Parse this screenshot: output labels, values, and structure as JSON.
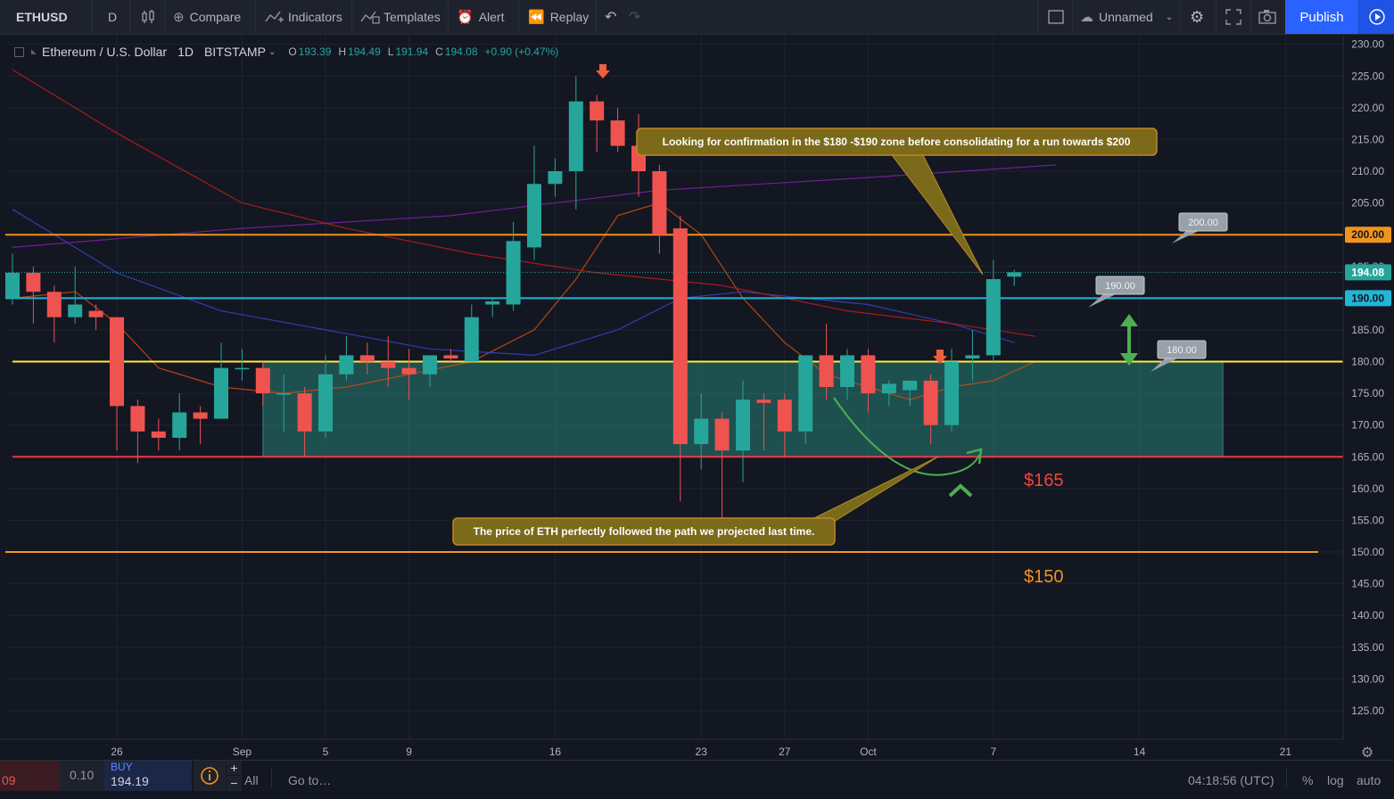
{
  "toolbar": {
    "symbol": "ETHUSD",
    "interval": "D",
    "compare_label": "Compare",
    "indicators_label": "Indicators",
    "templates_label": "Templates",
    "alert_label": "Alert",
    "replay_label": "Replay",
    "layout_name": "Unnamed",
    "publish_label": "Publish"
  },
  "legend": {
    "title": "Ethereum / U.S. Dollar",
    "interval": "1D",
    "exchange": "BITSTAMP",
    "open_label": "O",
    "open": "193.39",
    "high_label": "H",
    "high": "194.49",
    "low_label": "L",
    "low": "191.94",
    "close_label": "C",
    "close": "194.08",
    "change": "+0.90 (+0.47%)"
  },
  "colors": {
    "up": "#26a69a",
    "down": "#ef5350",
    "background": "#131722",
    "orange_line": "#f0941d",
    "cyan_line": "#22b5d6",
    "yellow_line": "#ffeb3b",
    "red_line": "#f23645"
  },
  "chart_data": {
    "type": "candlestick",
    "y_range": [
      120.5,
      231.5
    ],
    "y_ticks": [
      230,
      225,
      220,
      215,
      210,
      205,
      200,
      195,
      190,
      185,
      180,
      175,
      170,
      165,
      160,
      155,
      150,
      145,
      140,
      135,
      130,
      125
    ],
    "y_tick_labels": [
      "230.00",
      "225.00",
      "220.00",
      "215.00",
      "210.00",
      "205.00",
      "200.00",
      "195.00",
      "190.00",
      "185.00",
      "180.00",
      "175.00",
      "170.00",
      "165.00",
      "160.00",
      "155.00",
      "150.00",
      "145.00",
      "140.00",
      "135.00",
      "130.00",
      "125.00"
    ],
    "x_tick_labels": [
      "26",
      "Sep",
      "5",
      "9",
      "16",
      "23",
      "27",
      "Oct",
      "7",
      "14",
      "21"
    ],
    "x_tick_dates": [
      "2019-08-26",
      "2019-09-01",
      "2019-09-05",
      "2019-09-09",
      "2019-09-16",
      "2019-09-23",
      "2019-09-27",
      "2019-10-01",
      "2019-10-07",
      "2019-10-14",
      "2019-10-21"
    ],
    "candles": [
      {
        "date": "2019-08-21",
        "o": 190,
        "h": 197,
        "l": 189,
        "c": 194
      },
      {
        "date": "2019-08-22",
        "o": 194,
        "h": 195,
        "l": 186,
        "c": 191
      },
      {
        "date": "2019-08-23",
        "o": 191,
        "h": 192,
        "l": 183,
        "c": 187
      },
      {
        "date": "2019-08-24",
        "o": 187,
        "h": 195,
        "l": 186,
        "c": 189
      },
      {
        "date": "2019-08-25",
        "o": 188,
        "h": 189,
        "l": 185,
        "c": 187
      },
      {
        "date": "2019-08-26",
        "o": 187,
        "h": 187,
        "l": 166,
        "c": 173
      },
      {
        "date": "2019-08-27",
        "o": 173,
        "h": 174,
        "l": 164,
        "c": 169
      },
      {
        "date": "2019-08-28",
        "o": 169,
        "h": 171,
        "l": 166,
        "c": 168
      },
      {
        "date": "2019-08-29",
        "o": 168,
        "h": 175,
        "l": 166,
        "c": 172
      },
      {
        "date": "2019-08-30",
        "o": 172,
        "h": 173,
        "l": 167,
        "c": 171
      },
      {
        "date": "2019-08-31",
        "o": 171,
        "h": 183,
        "l": 171,
        "c": 179
      },
      {
        "date": "2019-09-01",
        "o": 179,
        "h": 182,
        "l": 177,
        "c": 179
      },
      {
        "date": "2019-09-02",
        "o": 179,
        "h": 180,
        "l": 173,
        "c": 175
      },
      {
        "date": "2019-09-03",
        "o": 175,
        "h": 178,
        "l": 169,
        "c": 175
      },
      {
        "date": "2019-09-04",
        "o": 175,
        "h": 176,
        "l": 165,
        "c": 169
      },
      {
        "date": "2019-09-05",
        "o": 169,
        "h": 181,
        "l": 168,
        "c": 178
      },
      {
        "date": "2019-09-06",
        "o": 178,
        "h": 184,
        "l": 177,
        "c": 181
      },
      {
        "date": "2019-09-07",
        "o": 181,
        "h": 183,
        "l": 178,
        "c": 180
      },
      {
        "date": "2019-09-08",
        "o": 180,
        "h": 184,
        "l": 176,
        "c": 179
      },
      {
        "date": "2019-09-09",
        "o": 179,
        "h": 182,
        "l": 174,
        "c": 178
      },
      {
        "date": "2019-09-10",
        "o": 178,
        "h": 181,
        "l": 176,
        "c": 181
      },
      {
        "date": "2019-09-11",
        "o": 181,
        "h": 182,
        "l": 180,
        "c": 180.5
      },
      {
        "date": "2019-09-12",
        "o": 180,
        "h": 189,
        "l": 180,
        "c": 187
      },
      {
        "date": "2019-09-13",
        "o": 189,
        "h": 190,
        "l": 187,
        "c": 189.5
      },
      {
        "date": "2019-09-14",
        "o": 189,
        "h": 202,
        "l": 188,
        "c": 199
      },
      {
        "date": "2019-09-15",
        "o": 198,
        "h": 214,
        "l": 196,
        "c": 208
      },
      {
        "date": "2019-09-16",
        "o": 208,
        "h": 212,
        "l": 206,
        "c": 210
      },
      {
        "date": "2019-09-17",
        "o": 210,
        "h": 225,
        "l": 204,
        "c": 221
      },
      {
        "date": "2019-09-18",
        "o": 221,
        "h": 222,
        "l": 213,
        "c": 218
      },
      {
        "date": "2019-09-19",
        "o": 218,
        "h": 220,
        "l": 213,
        "c": 214
      },
      {
        "date": "2019-09-20",
        "o": 214,
        "h": 219,
        "l": 206,
        "c": 210
      },
      {
        "date": "2019-09-21",
        "o": 210,
        "h": 211,
        "l": 197,
        "c": 200
      },
      {
        "date": "2019-09-22",
        "o": 201,
        "h": 203,
        "l": 158,
        "c": 167
      },
      {
        "date": "2019-09-23",
        "o": 167,
        "h": 175,
        "l": 163,
        "c": 171
      },
      {
        "date": "2019-09-24",
        "o": 171,
        "h": 172,
        "l": 152,
        "c": 166
      },
      {
        "date": "2019-09-25",
        "o": 166,
        "h": 177,
        "l": 161,
        "c": 174
      },
      {
        "date": "2019-09-26",
        "o": 174,
        "h": 175,
        "l": 166,
        "c": 173.5
      },
      {
        "date": "2019-09-27",
        "o": 174,
        "h": 175,
        "l": 165,
        "c": 169
      },
      {
        "date": "2019-09-28",
        "o": 169,
        "h": 181,
        "l": 167,
        "c": 181
      },
      {
        "date": "2019-09-29",
        "o": 181,
        "h": 186,
        "l": 174,
        "c": 176
      },
      {
        "date": "2019-09-30",
        "o": 176,
        "h": 182,
        "l": 174,
        "c": 181
      },
      {
        "date": "2019-10-01",
        "o": 181,
        "h": 182,
        "l": 172,
        "c": 175
      },
      {
        "date": "2019-10-02",
        "o": 175,
        "h": 177,
        "l": 173,
        "c": 176.5
      },
      {
        "date": "2019-10-03",
        "o": 175.5,
        "h": 177,
        "l": 173,
        "c": 177
      },
      {
        "date": "2019-10-04",
        "o": 177,
        "h": 178,
        "l": 167,
        "c": 170
      },
      {
        "date": "2019-10-05",
        "o": 170,
        "h": 182,
        "l": 169,
        "c": 180
      },
      {
        "date": "2019-10-06",
        "o": 180.5,
        "h": 185,
        "l": 177,
        "c": 181
      },
      {
        "date": "2019-10-07",
        "o": 181,
        "h": 196,
        "l": 180,
        "c": 193
      },
      {
        "date": "2019-10-08",
        "o": 193.39,
        "h": 194.49,
        "l": 191.94,
        "c": 194.08
      }
    ],
    "moving_averages": [
      {
        "color": "#c74a12",
        "points": [
          [
            "2019-08-21",
            190
          ],
          [
            "2019-08-24",
            191
          ],
          [
            "2019-08-26",
            186
          ],
          [
            "2019-08-28",
            179
          ],
          [
            "2019-08-31",
            176
          ],
          [
            "2019-09-03",
            175
          ],
          [
            "2019-09-06",
            176
          ],
          [
            "2019-09-09",
            178
          ],
          [
            "2019-09-12",
            180
          ],
          [
            "2019-09-15",
            185
          ],
          [
            "2019-09-17",
            193
          ],
          [
            "2019-09-19",
            203
          ],
          [
            "2019-09-21",
            205
          ],
          [
            "2019-09-23",
            200
          ],
          [
            "2019-09-25",
            190
          ],
          [
            "2019-09-27",
            183
          ],
          [
            "2019-09-29",
            178
          ],
          [
            "2019-10-01",
            176
          ],
          [
            "2019-10-03",
            174
          ],
          [
            "2019-10-05",
            176
          ],
          [
            "2019-10-07",
            177
          ],
          [
            "2019-10-09",
            180
          ]
        ]
      },
      {
        "color": "#3a3fbf",
        "points": [
          [
            "2019-08-21",
            204
          ],
          [
            "2019-08-26",
            194
          ],
          [
            "2019-08-31",
            188
          ],
          [
            "2019-09-05",
            185
          ],
          [
            "2019-09-10",
            182
          ],
          [
            "2019-09-15",
            181
          ],
          [
            "2019-09-19",
            185
          ],
          [
            "2019-09-22",
            190
          ],
          [
            "2019-09-25",
            191
          ],
          [
            "2019-09-28",
            190
          ],
          [
            "2019-10-01",
            189
          ],
          [
            "2019-10-05",
            186
          ],
          [
            "2019-10-08",
            183
          ]
        ]
      },
      {
        "color": "#b71c1c",
        "points": [
          [
            "2019-08-21",
            226
          ],
          [
            "2019-08-26",
            216
          ],
          [
            "2019-09-01",
            205
          ],
          [
            "2019-09-06",
            201
          ],
          [
            "2019-09-12",
            197
          ],
          [
            "2019-09-18",
            194
          ],
          [
            "2019-09-24",
            192
          ],
          [
            "2019-09-30",
            188
          ],
          [
            "2019-10-05",
            186
          ],
          [
            "2019-10-09",
            184
          ]
        ]
      },
      {
        "color": "#7b1fa2",
        "points": [
          [
            "2019-08-21",
            198
          ],
          [
            "2019-09-01",
            201
          ],
          [
            "2019-09-11",
            203
          ],
          [
            "2019-09-21",
            207
          ],
          [
            "2019-10-01",
            209
          ],
          [
            "2019-10-10",
            211
          ]
        ]
      }
    ],
    "horizontal_lines": [
      {
        "price": 200,
        "color": "#f0941d",
        "label": "200.00"
      },
      {
        "price": 190,
        "color": "#22b5d6",
        "label": "190.00"
      },
      {
        "price": 180,
        "color": "#ffeb3b"
      },
      {
        "price": 165,
        "color": "#f23645"
      },
      {
        "price": 150,
        "color": "#f0941d"
      }
    ],
    "price_callouts": [
      "200.00",
      "190.00",
      "180.00"
    ],
    "zone": {
      "top": 180,
      "bottom": 165,
      "from": "2019-09-02",
      "to": "2019-10-18"
    },
    "annotations": {
      "upper_note": "Looking for confirmation in the $180 -$190 zone before consolidating for a run towards $200",
      "lower_note": "The price of ETH perfectly followed the path we projected last time.",
      "label_165": "$165",
      "label_150": "$150"
    },
    "current_price": "194.08"
  },
  "bottom": {
    "left_value": "09",
    "step": "0.10",
    "buy_label": "BUY",
    "buy_price": "194.19",
    "range_all": "All",
    "goto": "Go to…",
    "time": "04:18:56 (UTC)",
    "percent": "%",
    "log": "log",
    "auto": "auto"
  }
}
